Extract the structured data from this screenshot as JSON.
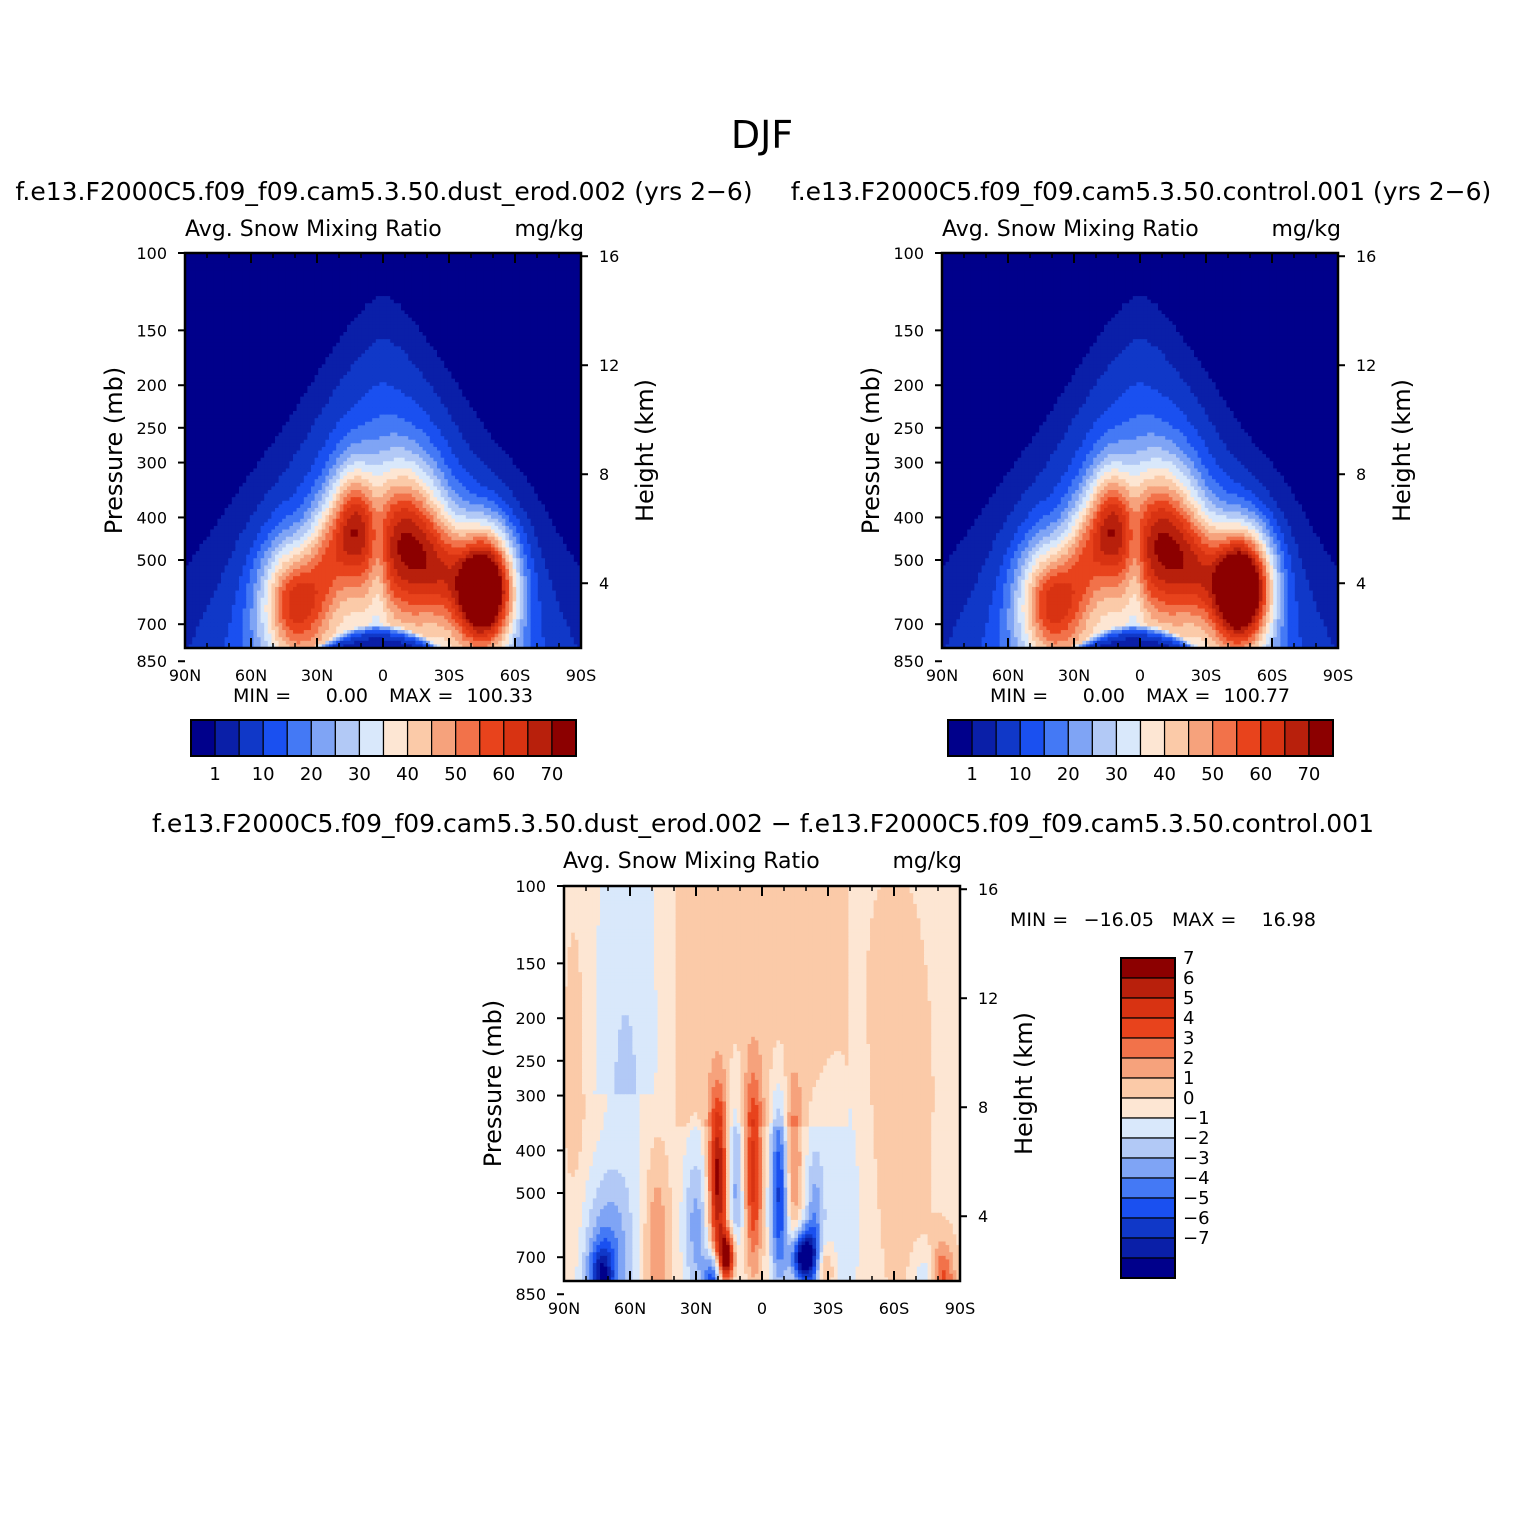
{
  "title": "DJF",
  "colors": {
    "abs_levels": [
      "#00008b",
      "#0a1fa8",
      "#1038c8",
      "#1a50f0",
      "#4479f5",
      "#7fa4f5",
      "#b2c9f6",
      "#d9e8fb",
      "#fde6d3",
      "#fbcaa8",
      "#f6a27c",
      "#f2724a",
      "#e8431c",
      "#d83312",
      "#b8200c",
      "#8c0000"
    ],
    "diff_levels": [
      "#00008b",
      "#0a1fa8",
      "#1038c8",
      "#1a50f0",
      "#4479f5",
      "#7fa4f5",
      "#b2c9f6",
      "#d9e8fb",
      "#fde6d3",
      "#fbcaa8",
      "#f6a27c",
      "#f2724a",
      "#e8431c",
      "#d83312",
      "#b8200c",
      "#8c0000"
    ]
  },
  "panels": {
    "left": {
      "case_title": "f.e13.F2000C5.f09_f09.cam5.3.50.dust_erod.002 (yrs 2−6)",
      "variable": "Avg. Snow Mixing Ratio",
      "units": "mg/kg",
      "min_label": "MIN =",
      "min_value": "0.00",
      "max_label": "MAX =",
      "max_value": "100.33"
    },
    "right": {
      "case_title": "f.e13.F2000C5.f09_f09.cam5.3.50.control.001 (yrs 2−6)",
      "variable": "Avg. Snow Mixing Ratio",
      "units": "mg/kg",
      "min_label": "MIN =",
      "min_value": "0.00",
      "max_label": "MAX =",
      "max_value": "100.77"
    },
    "diff": {
      "case_title": "f.e13.F2000C5.f09_f09.cam5.3.50.dust_erod.002 − f.e13.F2000C5.f09_f09.cam5.3.50.control.001",
      "variable": "Avg. Snow Mixing Ratio",
      "units": "mg/kg",
      "min_label": "MIN =",
      "min_value": "−16.05",
      "max_label": "MAX =",
      "max_value": "16.98"
    }
  },
  "axes": {
    "ylabel": "Pressure (mb)",
    "ylabel_right": "Height (km)",
    "pressure_ticks": [
      "100",
      "150",
      "200",
      "250",
      "300",
      "400",
      "500",
      "700",
      "850"
    ],
    "height_ticks": [
      "16",
      "12",
      "8",
      "4"
    ],
    "lat_ticks": [
      "90N",
      "60N",
      "30N",
      "0",
      "30S",
      "60S",
      "90S"
    ]
  },
  "colorbars": {
    "abs_labels": [
      "1",
      "10",
      "20",
      "30",
      "40",
      "50",
      "60",
      "70"
    ],
    "diff_labels": [
      "7",
      "6",
      "5",
      "4",
      "3",
      "2",
      "1",
      "0",
      "−1",
      "−2",
      "−3",
      "−4",
      "−5",
      "−6",
      "−7"
    ]
  },
  "chart_data": [
    {
      "type": "heatmap",
      "title": "f.e13.F2000C5.f09_f09.cam5.3.50.dust_erod.002 (yrs 2−6)",
      "variable": "Avg. Snow Mixing Ratio",
      "units": "mg/kg",
      "x": "latitude",
      "xlim": [
        "90N",
        "90S"
      ],
      "ylabel": "Pressure (mb)",
      "ylim": [
        1000,
        100
      ],
      "y_scale": "log",
      "ylabel_right": "Height (km)",
      "min": 0.0,
      "max": 100.33,
      "contour_levels": [
        1,
        5,
        10,
        15,
        20,
        25,
        30,
        35,
        40,
        45,
        50,
        55,
        60,
        65,
        70
      ],
      "features": [
        {
          "lat": 40,
          "p": 630,
          "value": 62
        },
        {
          "lat": 12,
          "p": 400,
          "value": 57
        },
        {
          "lat": -12,
          "p": 420,
          "value": 62
        },
        {
          "lat": -48,
          "p": 590,
          "value": 100
        },
        {
          "lat": 0,
          "p": 900,
          "value": 0
        }
      ]
    },
    {
      "type": "heatmap",
      "title": "f.e13.F2000C5.f09_f09.cam5.3.50.control.001 (yrs 2−6)",
      "variable": "Avg. Snow Mixing Ratio",
      "units": "mg/kg",
      "x": "latitude",
      "xlim": [
        "90N",
        "90S"
      ],
      "ylabel": "Pressure (mb)",
      "ylim": [
        1000,
        100
      ],
      "y_scale": "log",
      "ylabel_right": "Height (km)",
      "min": 0.0,
      "max": 100.77,
      "contour_levels": [
        1,
        5,
        10,
        15,
        20,
        25,
        30,
        35,
        40,
        45,
        50,
        55,
        60,
        65,
        70
      ],
      "features": [
        {
          "lat": 40,
          "p": 630,
          "value": 62
        },
        {
          "lat": 12,
          "p": 400,
          "value": 57
        },
        {
          "lat": -12,
          "p": 420,
          "value": 62
        },
        {
          "lat": -48,
          "p": 590,
          "value": 100
        },
        {
          "lat": 0,
          "p": 900,
          "value": 0
        }
      ]
    },
    {
      "type": "heatmap",
      "title": "f.e13.F2000C5.f09_f09.cam5.3.50.dust_erod.002 − f.e13.F2000C5.f09_f09.cam5.3.50.control.001",
      "variable": "Avg. Snow Mixing Ratio",
      "units": "mg/kg",
      "x": "latitude",
      "xlim": [
        "90N",
        "90S"
      ],
      "ylabel": "Pressure (mb)",
      "ylim": [
        1000,
        100
      ],
      "y_scale": "log",
      "ylabel_right": "Height (km)",
      "min": -16.05,
      "max": 16.98,
      "contour_levels": [
        -7,
        -6,
        -5,
        -4,
        -3,
        -2,
        -1,
        0,
        1,
        2,
        3,
        4,
        5,
        6,
        7
      ],
      "features": [
        {
          "lat": 20,
          "p": 450,
          "value": 6
        },
        {
          "lat": 16,
          "p": 720,
          "value": 7
        },
        {
          "lat": -20,
          "p": 720,
          "value": -7
        },
        {
          "lat": -10,
          "p": 500,
          "value": -5
        },
        {
          "lat": 0,
          "p": 400,
          "value": 4
        },
        {
          "lat": -75,
          "p": 760,
          "value": -4
        },
        {
          "lat": 30,
          "p": 780,
          "value": -5
        },
        {
          "lat": -83,
          "p": 820,
          "value": 4
        }
      ]
    }
  ]
}
